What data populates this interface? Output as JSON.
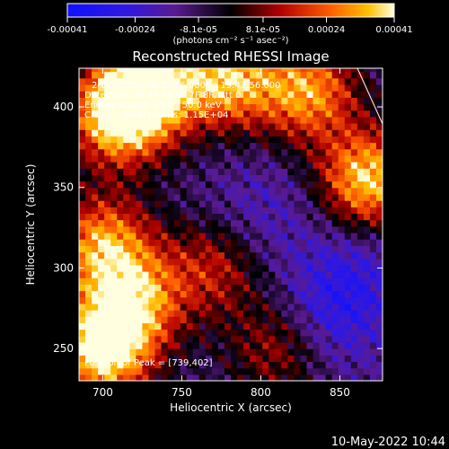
{
  "chart_data": {
    "type": "heatmap",
    "title": "Reconstructed RHESSI Image",
    "xlabel": "Heliocentric X (arcsec)",
    "ylabel": "Heliocentric Y (arcsec)",
    "xlim": [
      685,
      877
    ],
    "ylim": [
      230,
      424
    ],
    "x_ticks": [
      700,
      750,
      800,
      850
    ],
    "y_ticks": [
      250,
      300,
      350,
      400
    ],
    "colorbar": {
      "label": "(photons cm⁻² s⁻¹ asec⁻²)",
      "ticks": [
        "-0.00041",
        "-0.00024",
        "-8.1e-05",
        "8.1e-05",
        "0.00024",
        "0.00041"
      ],
      "range": [
        -0.00041,
        0.00041
      ]
    },
    "annotations": [
      "2-Oct-2010 19:37:56.000 to 19:43:56.000",
      "Detectors: 3F 4F 5F 6F 7F 8F, Att 0",
      "Energy Range: 25.0 - 50.0 keV",
      "Clean     Total counts: 1.15E+04",
      "Position of Peak = [739,402]"
    ],
    "peak_position": [
      739,
      402
    ],
    "intensity_map_description": "Weak emission (purple/blue, negative to near-zero) across center and right; bright positive emission (red/orange/yellow) along top edge, top-left corner, right edge near y=350, and bottom-left corner.",
    "hot_regions": [
      {
        "x": 710,
        "y": 395,
        "strength": 0.95
      },
      {
        "x": 730,
        "y": 415,
        "strength": 0.9
      },
      {
        "x": 780,
        "y": 418,
        "strength": 0.8
      },
      {
        "x": 830,
        "y": 410,
        "strength": 0.75
      },
      {
        "x": 868,
        "y": 355,
        "strength": 0.9
      },
      {
        "x": 700,
        "y": 250,
        "strength": 1.0
      },
      {
        "x": 720,
        "y": 280,
        "strength": 0.7
      },
      {
        "x": 700,
        "y": 315,
        "strength": 0.75
      },
      {
        "x": 770,
        "y": 300,
        "strength": 0.45
      },
      {
        "x": 810,
        "y": 250,
        "strength": 0.4
      }
    ],
    "cold_regions": [
      {
        "x": 845,
        "y": 270,
        "strength": 0.9
      },
      {
        "x": 800,
        "y": 335,
        "strength": 0.6
      },
      {
        "x": 860,
        "y": 300,
        "strength": 0.7
      }
    ]
  },
  "footer": {
    "date": "10-May-2022 10:44"
  }
}
